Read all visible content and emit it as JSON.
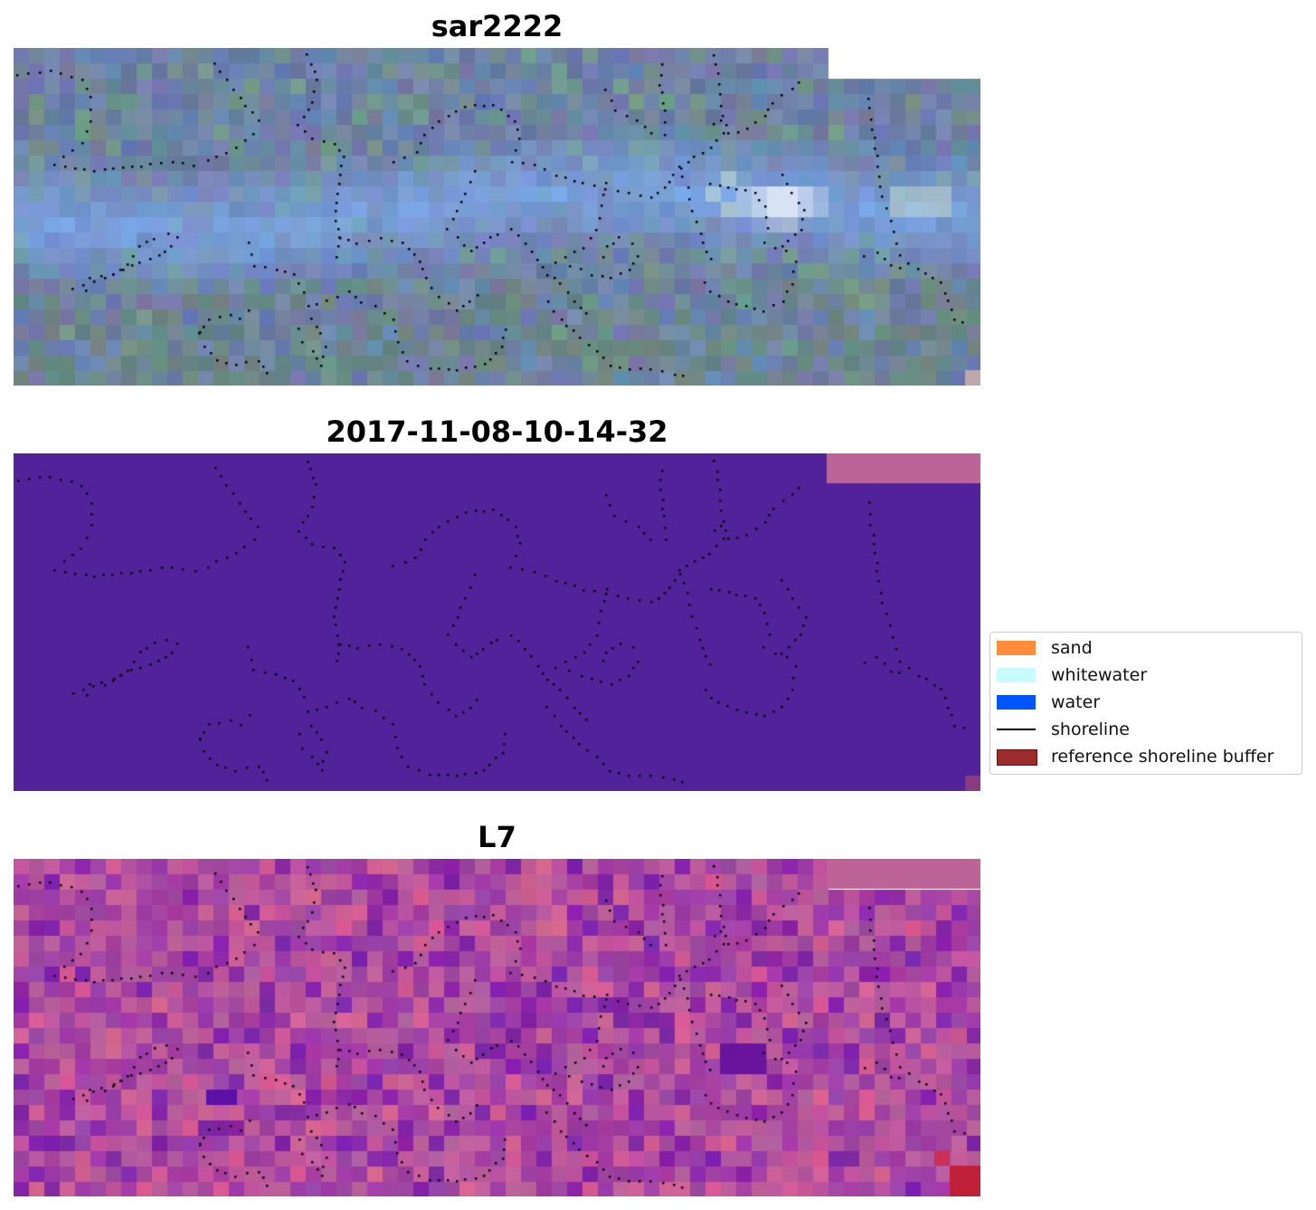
{
  "panels": [
    {
      "title": "sar2222",
      "kind": "rgb"
    },
    {
      "title": "2017-11-08-10-14-32",
      "kind": "classified"
    },
    {
      "title": "L7",
      "kind": "index"
    }
  ],
  "legend": {
    "items": [
      {
        "label": "sand",
        "type": "patch",
        "color": "#ff8c3a"
      },
      {
        "label": "whitewater",
        "type": "patch",
        "color": "#c8fcfc"
      },
      {
        "label": "water",
        "type": "patch",
        "color": "#0055ff"
      },
      {
        "label": "shoreline",
        "type": "line",
        "color": "#000000"
      },
      {
        "label": "reference shoreline buffer",
        "type": "patch",
        "color": "#9b2c2c",
        "edge": "#6b1010"
      }
    ]
  },
  "colors": {
    "classified_background": "#52229a",
    "nodata_pink": "#bc6498",
    "shoreline_dots": "#000000"
  }
}
